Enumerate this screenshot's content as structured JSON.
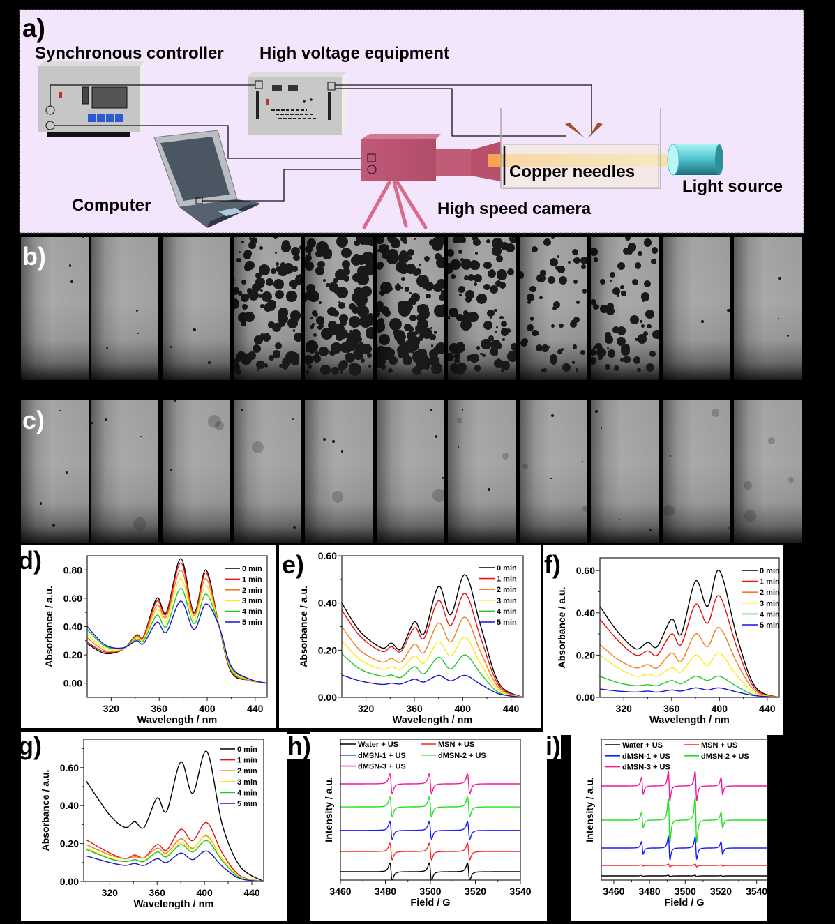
{
  "panel_labels": {
    "a": "a)",
    "b": "b)",
    "c": "c)",
    "d": "d)",
    "e": "e)",
    "f": "f)",
    "g": "g)",
    "h": "h)",
    "i": "i)"
  },
  "setup": {
    "synchronous_controller": "Synchronous controller",
    "high_voltage_equipment": "High voltage equipment",
    "computer": "Computer",
    "high_speed_camera": "High speed camera",
    "copper_needles": "Copper needles",
    "light_source": "Light source",
    "colors": {
      "background": "#f3e5fb",
      "camera": "#b8566e",
      "needle": "#a0502e",
      "light": "#55c8d2"
    }
  },
  "frames": {
    "b": {
      "count": 11,
      "bubble_density": [
        0,
        0,
        0,
        0.7,
        1,
        1,
        0.7,
        0.35,
        0.45,
        0,
        0
      ]
    },
    "c": {
      "count": 11,
      "bubble_density": [
        0.02,
        0.02,
        0.02,
        0.02,
        0.02,
        0.02,
        0.06,
        0.05,
        0.02,
        0.02,
        0.02
      ]
    }
  },
  "chart_data": [
    {
      "id": "d",
      "type": "line",
      "xlabel": "Wavelength / nm",
      "ylabel": "Absorbance / a.u.",
      "xlim": [
        300,
        450
      ],
      "ylim": [
        -0.1,
        0.9
      ],
      "xticks": [
        320,
        360,
        400,
        440
      ],
      "xtick_labels": [
        "320",
        "360",
        "400",
        "440"
      ],
      "yticks": [
        0,
        0.2,
        0.4,
        0.6,
        0.8
      ],
      "ytick_labels": [
        "0.00",
        "0.20",
        "0.40",
        "0.60",
        "0.80"
      ],
      "legend": "top-right",
      "x": [
        300,
        315,
        330,
        341,
        347,
        358,
        366,
        378,
        389,
        399,
        410,
        420,
        435,
        450
      ],
      "series": [
        {
          "name": "0 min",
          "color": "#000000",
          "values": [
            0.28,
            0.21,
            0.24,
            0.34,
            0.33,
            0.6,
            0.5,
            0.88,
            0.5,
            0.8,
            0.4,
            0.08,
            0.02,
            0
          ]
        },
        {
          "name": "1 min",
          "color": "#e81010",
          "values": [
            0.29,
            0.22,
            0.24,
            0.335,
            0.33,
            0.58,
            0.49,
            0.85,
            0.49,
            0.78,
            0.4,
            0.09,
            0.02,
            0
          ]
        },
        {
          "name": "2 min",
          "color": "#f07f1e",
          "values": [
            0.32,
            0.23,
            0.24,
            0.33,
            0.32,
            0.55,
            0.47,
            0.8,
            0.48,
            0.74,
            0.4,
            0.09,
            0.02,
            0
          ]
        },
        {
          "name": "3 min",
          "color": "#ffe81a",
          "values": [
            0.34,
            0.245,
            0.245,
            0.32,
            0.31,
            0.52,
            0.44,
            0.74,
            0.45,
            0.69,
            0.4,
            0.1,
            0.025,
            0
          ]
        },
        {
          "name": "4 min",
          "color": "#22c822",
          "values": [
            0.38,
            0.26,
            0.25,
            0.31,
            0.3,
            0.48,
            0.4,
            0.67,
            0.42,
            0.63,
            0.4,
            0.11,
            0.03,
            0
          ]
        },
        {
          "name": "5 min",
          "color": "#1414d8",
          "values": [
            0.4,
            0.27,
            0.25,
            0.3,
            0.28,
            0.43,
            0.36,
            0.58,
            0.38,
            0.56,
            0.4,
            0.12,
            0.03,
            0
          ]
        }
      ]
    },
    {
      "id": "e",
      "type": "line",
      "xlabel": "Wavelength / nm",
      "ylabel": "Absorbance / a.u.",
      "xlim": [
        300,
        450
      ],
      "ylim": [
        0,
        0.6
      ],
      "xticks": [
        320,
        360,
        400,
        440
      ],
      "xtick_labels": [
        "320",
        "360",
        "400",
        "440"
      ],
      "yticks": [
        0,
        0.2,
        0.4,
        0.6
      ],
      "ytick_labels": [
        "0.00",
        "0.20",
        "0.40",
        "0.60"
      ],
      "legend": "top-right",
      "x": [
        300,
        315,
        333,
        341,
        349,
        360,
        368,
        380,
        390,
        402,
        415,
        430,
        450
      ],
      "series": [
        {
          "name": "0 min",
          "color": "#000000",
          "values": [
            0.4,
            0.28,
            0.21,
            0.23,
            0.205,
            0.32,
            0.27,
            0.47,
            0.35,
            0.52,
            0.3,
            0.06,
            0
          ]
        },
        {
          "name": "1 min",
          "color": "#e81010",
          "values": [
            0.37,
            0.26,
            0.195,
            0.215,
            0.195,
            0.295,
            0.25,
            0.41,
            0.305,
            0.44,
            0.25,
            0.05,
            0
          ]
        },
        {
          "name": "2 min",
          "color": "#f07f1e",
          "values": [
            0.3,
            0.2,
            0.15,
            0.165,
            0.15,
            0.225,
            0.19,
            0.315,
            0.235,
            0.34,
            0.19,
            0.04,
            0
          ]
        },
        {
          "name": "3 min",
          "color": "#ffe81a",
          "values": [
            0.24,
            0.16,
            0.12,
            0.13,
            0.12,
            0.175,
            0.145,
            0.235,
            0.175,
            0.255,
            0.14,
            0.03,
            0
          ]
        },
        {
          "name": "4 min",
          "color": "#22c822",
          "values": [
            0.185,
            0.12,
            0.09,
            0.095,
            0.085,
            0.13,
            0.1,
            0.17,
            0.12,
            0.18,
            0.1,
            0.02,
            0
          ]
        },
        {
          "name": "5 min",
          "color": "#1414d8",
          "values": [
            0.095,
            0.07,
            0.055,
            0.06,
            0.057,
            0.077,
            0.065,
            0.093,
            0.07,
            0.093,
            0.055,
            0.015,
            0
          ]
        }
      ]
    },
    {
      "id": "f",
      "type": "line",
      "xlabel": "Wavelength / nm",
      "ylabel": "Absorbance / a.u.",
      "xlim": [
        300,
        450
      ],
      "ylim": [
        0,
        0.66
      ],
      "xticks": [
        320,
        360,
        400,
        440
      ],
      "xtick_labels": [
        "320",
        "360",
        "400",
        "440"
      ],
      "yticks": [
        0,
        0.2,
        0.4,
        0.6
      ],
      "ytick_labels": [
        "0.00",
        "0.20",
        "0.40",
        "0.60"
      ],
      "legend": "top-right",
      "x": [
        300,
        315,
        330,
        340,
        348,
        360,
        368,
        380,
        390,
        400,
        415,
        430,
        450
      ],
      "series": [
        {
          "name": "0 min",
          "color": "#000000",
          "values": [
            0.43,
            0.31,
            0.23,
            0.26,
            0.24,
            0.37,
            0.3,
            0.55,
            0.43,
            0.6,
            0.28,
            0.05,
            0
          ]
        },
        {
          "name": "1 min",
          "color": "#e81010",
          "values": [
            0.37,
            0.27,
            0.2,
            0.22,
            0.2,
            0.3,
            0.25,
            0.44,
            0.35,
            0.48,
            0.23,
            0.04,
            0
          ]
        },
        {
          "name": "2 min",
          "color": "#f07f1e",
          "values": [
            0.25,
            0.18,
            0.14,
            0.155,
            0.14,
            0.21,
            0.17,
            0.3,
            0.24,
            0.33,
            0.16,
            0.03,
            0
          ]
        },
        {
          "name": "3 min",
          "color": "#ffe81a",
          "values": [
            0.2,
            0.14,
            0.1,
            0.11,
            0.1,
            0.14,
            0.12,
            0.2,
            0.15,
            0.21,
            0.1,
            0.02,
            0
          ]
        },
        {
          "name": "4 min",
          "color": "#22c822",
          "values": [
            0.1,
            0.07,
            0.055,
            0.06,
            0.055,
            0.08,
            0.065,
            0.1,
            0.08,
            0.1,
            0.05,
            0.01,
            0
          ]
        },
        {
          "name": "5 min",
          "color": "#1414d8",
          "values": [
            0.04,
            0.03,
            0.025,
            0.03,
            0.025,
            0.035,
            0.03,
            0.045,
            0.035,
            0.045,
            0.025,
            0.008,
            0
          ]
        }
      ]
    },
    {
      "id": "g",
      "type": "line",
      "xlabel": "Wavelength / nm",
      "ylabel": "Absorbance / a.u.",
      "xlim": [
        298,
        450
      ],
      "ylim": [
        0,
        0.75
      ],
      "xticks": [
        320,
        360,
        400,
        440
      ],
      "xtick_labels": [
        "320",
        "360",
        "400",
        "440"
      ],
      "yticks": [
        0,
        0.2,
        0.4,
        0.6
      ],
      "ytick_labels": [
        "0.00",
        "0.20",
        "0.40",
        "0.60"
      ],
      "legend": "top-right",
      "x": [
        300,
        320,
        333,
        341,
        349,
        360,
        368,
        380,
        390,
        402,
        415,
        430,
        450
      ],
      "series": [
        {
          "name": "0 min",
          "color": "#000000",
          "values": [
            0.53,
            0.35,
            0.285,
            0.315,
            0.285,
            0.44,
            0.37,
            0.63,
            0.465,
            0.685,
            0.3,
            0.08,
            0
          ]
        },
        {
          "name": "1 min",
          "color": "#e81010",
          "values": [
            0.22,
            0.15,
            0.12,
            0.14,
            0.125,
            0.195,
            0.165,
            0.275,
            0.215,
            0.31,
            0.15,
            0.03,
            0
          ]
        },
        {
          "name": "2 min",
          "color": "#f07f1e",
          "values": [
            0.195,
            0.14,
            0.12,
            0.13,
            0.125,
            0.175,
            0.15,
            0.225,
            0.175,
            0.24,
            0.12,
            0.025,
            0
          ]
        },
        {
          "name": "3 min",
          "color": "#ffe81a",
          "values": [
            0.175,
            0.125,
            0.105,
            0.115,
            0.11,
            0.155,
            0.135,
            0.205,
            0.17,
            0.245,
            0.12,
            0.025,
            0
          ]
        },
        {
          "name": "4 min",
          "color": "#22c822",
          "values": [
            0.17,
            0.12,
            0.105,
            0.115,
            0.105,
            0.155,
            0.13,
            0.195,
            0.155,
            0.215,
            0.11,
            0.02,
            0
          ]
        },
        {
          "name": "5 min",
          "color": "#1414d8",
          "values": [
            0.135,
            0.1,
            0.085,
            0.095,
            0.085,
            0.12,
            0.1,
            0.15,
            0.115,
            0.16,
            0.08,
            0.015,
            0
          ]
        }
      ]
    },
    {
      "id": "h",
      "type": "epr",
      "xlabel": "Field / G",
      "ylabel": "Intensity / a.u.",
      "xlim": [
        3460,
        3540
      ],
      "ylim": [
        -0.38,
        6.03
      ],
      "xticks": [
        3460,
        3480,
        3500,
        3520,
        3540
      ],
      "xtick_labels": [
        "3460",
        "3480",
        "3500",
        "3520",
        "3540"
      ],
      "legend": "top-left",
      "linewidth_G": 0.9,
      "lines_G": [
        3482.5,
        3500,
        3517
      ],
      "series": [
        {
          "name": "Water + US",
          "color": "#000000",
          "offset": 0,
          "amplitudes": [
            0.4,
            0.4,
            0.4
          ]
        },
        {
          "name": "MSN + US",
          "color": "#ff2020",
          "offset": 0.92,
          "amplitudes": [
            0.38,
            0.38,
            0.38
          ]
        },
        {
          "name": "dMSN-1 + US",
          "color": "#1a1aff",
          "offset": 1.88,
          "amplitudes": [
            0.4,
            0.4,
            0.4
          ]
        },
        {
          "name": "dMSN-2 + US",
          "color": "#22e022",
          "offset": 2.95,
          "amplitudes": [
            0.45,
            0.45,
            0.45
          ]
        },
        {
          "name": "dMSN-3 + US",
          "color": "#f0189a",
          "offset": 4.0,
          "amplitudes": [
            0.45,
            0.45,
            0.45
          ]
        }
      ]
    },
    {
      "id": "i",
      "type": "epr",
      "xlabel": "Field / G",
      "ylabel": "Intensity / a.u.",
      "xlim": [
        3453,
        3546
      ],
      "ylim": [
        -0.3,
        9.8
      ],
      "xticks": [
        3460,
        3480,
        3500,
        3520,
        3540
      ],
      "xtick_labels": [
        "3460",
        "3480",
        "3500",
        "3520",
        "3540"
      ],
      "legend": "top-left",
      "linewidth_G": 0.8,
      "lines_G": [
        3476,
        3491,
        3506,
        3520.5
      ],
      "series": [
        {
          "name": "Water + US",
          "color": "#000000",
          "offset": 0,
          "amplitudes": [
            0.03,
            0.05,
            0.05,
            0.03
          ]
        },
        {
          "name": "MSN + US",
          "color": "#ff2020",
          "offset": 0.75,
          "amplitudes": [
            0.04,
            0.1,
            0.1,
            0.04
          ]
        },
        {
          "name": "dMSN-1 + US",
          "color": "#1a1aff",
          "offset": 2.0,
          "amplitudes": [
            0.45,
            0.85,
            0.8,
            0.45
          ]
        },
        {
          "name": "dMSN-2 + US",
          "color": "#22e022",
          "offset": 4.0,
          "amplitudes": [
            0.55,
            1.6,
            1.6,
            0.55
          ]
        },
        {
          "name": "dMSN-3 + US",
          "color": "#f0189a",
          "offset": 6.45,
          "amplitudes": [
            0.6,
            1.05,
            1.05,
            0.6
          ]
        }
      ]
    }
  ]
}
